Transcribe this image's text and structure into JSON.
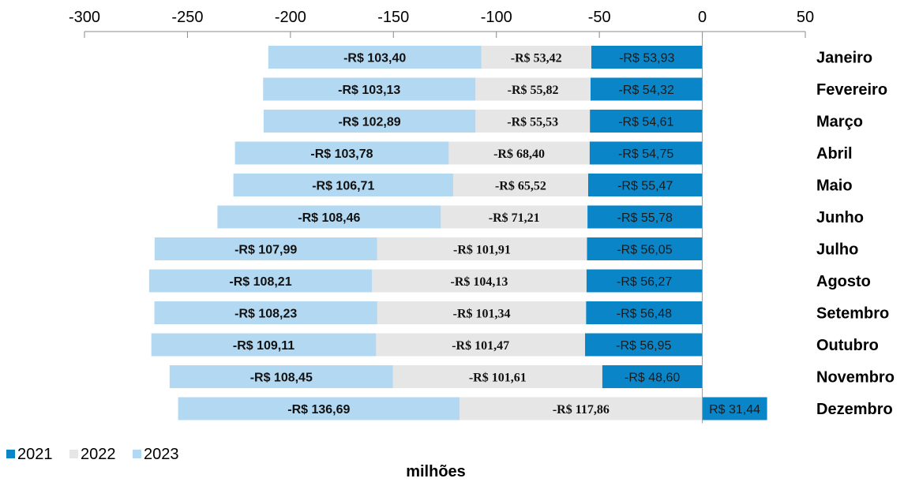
{
  "chart_data": {
    "type": "bar",
    "orientation": "horizontal",
    "stacked": true,
    "title": "",
    "xlabel": "milhões",
    "ylabel": "",
    "xlim": [
      -300,
      50
    ],
    "xticks": [
      -300,
      -250,
      -200,
      -150,
      -100,
      -50,
      0,
      50
    ],
    "xtick_labels": [
      "-300",
      "-250",
      "-200",
      "-150",
      "-100",
      "-50",
      "0",
      "50"
    ],
    "x_axis_position": "top",
    "category_labels_position": "right",
    "grid": false,
    "legend_position": "bottom-left",
    "categories": [
      "Janeiro",
      "Fevereiro",
      "Março",
      "Abril",
      "Maio",
      "Junho",
      "Julho",
      "Agosto",
      "Setembro",
      "Outubro",
      "Novembro",
      "Dezembro"
    ],
    "series": [
      {
        "name": "2021",
        "color": "#0a86c8",
        "values": [
          -53.93,
          -54.32,
          -54.61,
          -54.75,
          -55.47,
          -55.78,
          -56.05,
          -56.27,
          -56.48,
          -56.95,
          -48.6,
          31.44
        ],
        "labels": [
          "-R$ 53,93",
          "-R$ 54,32",
          "-R$ 54,61",
          "-R$ 54,75",
          "-R$ 55,47",
          "-R$ 55,78",
          "-R$ 56,05",
          "-R$ 56,27",
          "-R$ 56,48",
          "-R$ 56,95",
          "-R$ 48,60",
          "R$ 31,44"
        ]
      },
      {
        "name": "2022",
        "color": "#e6e6e6",
        "values": [
          -53.42,
          -55.82,
          -55.53,
          -68.4,
          -65.52,
          -71.21,
          -101.91,
          -104.13,
          -101.34,
          -101.47,
          -101.61,
          -117.86
        ],
        "labels": [
          "-R$ 53,42",
          "-R$ 55,82",
          "-R$ 55,53",
          "-R$ 68,40",
          "-R$ 65,52",
          "-R$ 71,21",
          "-R$ 101,91",
          "-R$ 104,13",
          "-R$ 101,34",
          "-R$ 101,47",
          "-R$ 101,61",
          "-R$ 117,86"
        ]
      },
      {
        "name": "2023",
        "color": "#b3d9f2",
        "values": [
          -103.4,
          -103.13,
          -102.89,
          -103.78,
          -106.71,
          -108.46,
          -107.99,
          -108.21,
          -108.23,
          -109.11,
          -108.45,
          -136.69
        ],
        "labels": [
          "-R$ 103,40",
          "-R$ 103,13",
          "-R$ 102,89",
          "-R$ 103,78",
          "-R$ 106,71",
          "-R$ 108,46",
          "-R$ 107,99",
          "-R$ 108,21",
          "-R$ 108,23",
          "-R$ 109,11",
          "-R$ 108,45",
          "-R$ 136,69"
        ]
      }
    ]
  }
}
